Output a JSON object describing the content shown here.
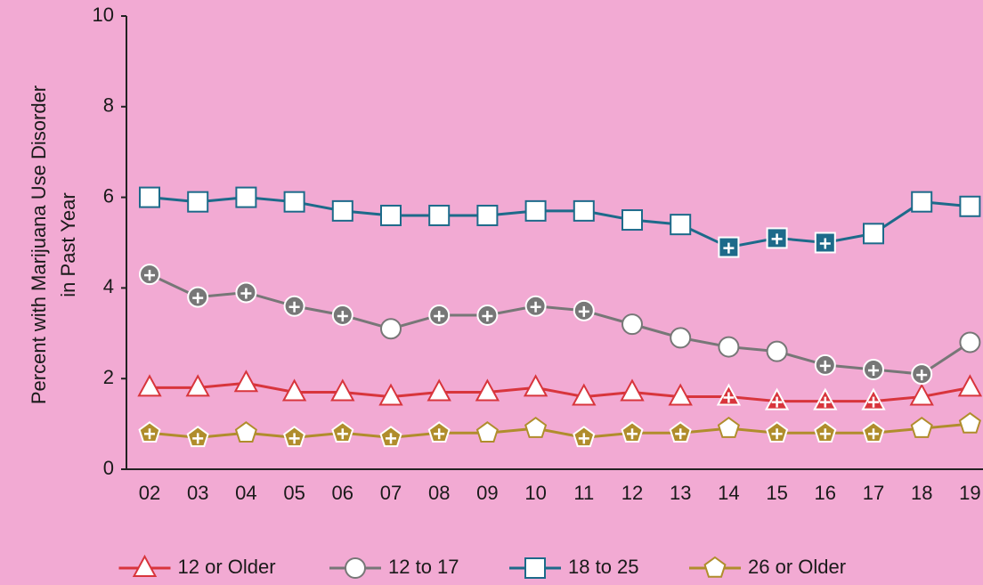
{
  "chart_data": {
    "type": "line",
    "ylabel": [
      "Percent with Marijuana Use Disorder",
      "in Past Year"
    ],
    "categories": [
      "02",
      "03",
      "04",
      "05",
      "06",
      "07",
      "08",
      "09",
      "10",
      "11",
      "12",
      "13",
      "14",
      "15",
      "16",
      "17",
      "18",
      "19"
    ],
    "ylim": [
      0,
      10
    ],
    "yticks": [
      0,
      2,
      4,
      6,
      8,
      10
    ],
    "series": [
      {
        "name": "12 or Older",
        "color": "#d8353c",
        "marker": "triangle",
        "values": [
          1.8,
          1.8,
          1.9,
          1.7,
          1.7,
          1.6,
          1.7,
          1.7,
          1.8,
          1.6,
          1.7,
          1.6,
          1.6,
          1.5,
          1.5,
          1.5,
          1.6,
          1.8
        ],
        "marker_filled": [
          false,
          false,
          false,
          false,
          false,
          false,
          false,
          false,
          false,
          false,
          false,
          false,
          true,
          true,
          true,
          true,
          false,
          false
        ]
      },
      {
        "name": "12 to 17",
        "color": "#777777",
        "marker": "circle",
        "values": [
          4.3,
          3.8,
          3.9,
          3.6,
          3.4,
          3.1,
          3.4,
          3.4,
          3.6,
          3.5,
          3.2,
          2.9,
          2.7,
          2.6,
          2.3,
          2.2,
          2.1,
          2.8
        ],
        "marker_filled": [
          true,
          true,
          true,
          true,
          true,
          false,
          true,
          true,
          true,
          true,
          false,
          false,
          false,
          false,
          true,
          true,
          true,
          false
        ]
      },
      {
        "name": "18 to 25",
        "color": "#1d6a8a",
        "marker": "square",
        "values": [
          6.0,
          5.9,
          6.0,
          5.9,
          5.7,
          5.6,
          5.6,
          5.6,
          5.7,
          5.7,
          5.5,
          5.4,
          4.9,
          5.1,
          5.0,
          5.2,
          5.9,
          5.8
        ],
        "marker_filled": [
          false,
          false,
          false,
          false,
          false,
          false,
          false,
          false,
          false,
          false,
          false,
          false,
          true,
          true,
          true,
          false,
          false,
          false
        ]
      },
      {
        "name": "26 or Older",
        "color": "#b08d2c",
        "marker": "pentagon",
        "values": [
          0.8,
          0.7,
          0.8,
          0.7,
          0.8,
          0.7,
          0.8,
          0.8,
          0.9,
          0.7,
          0.8,
          0.8,
          0.9,
          0.8,
          0.8,
          0.8,
          0.9,
          1.0
        ],
        "marker_filled": [
          true,
          true,
          false,
          true,
          true,
          true,
          true,
          false,
          false,
          true,
          true,
          true,
          false,
          true,
          true,
          true,
          false,
          false
        ]
      }
    ]
  }
}
